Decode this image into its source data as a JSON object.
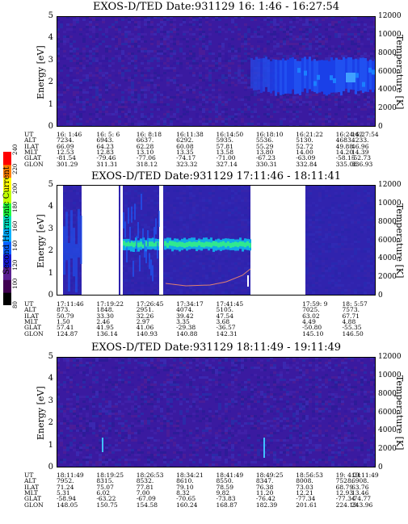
{
  "colorbar": {
    "label": "Second Harmonic Current",
    "ticks": [
      "80",
      "100",
      "120",
      "140",
      "160",
      "180",
      "200",
      "220",
      "240"
    ],
    "colors": [
      "#000000",
      "#400050",
      "#5a2090",
      "#1818d0",
      "#0a60ff",
      "#00b0ff",
      "#00e0c0",
      "#20ff40",
      "#c0ff00",
      "#ffff00",
      "#ff8000",
      "#ff0000"
    ]
  },
  "panels": [
    {
      "title": "EXOS-D/TED  Date:931129  16: 1:46 - 16:27:54",
      "ylabel": "Energy [eV]",
      "rlabel": "Temperature [K]",
      "yticks": [
        "0",
        "1",
        "2",
        "3",
        "4",
        "5"
      ],
      "rticks": [
        "0",
        "2000",
        "4000",
        "6000",
        "8000",
        "10000",
        "12000"
      ],
      "rows": [
        {
          "name": "UT",
          "values": [
            "16: 1:46",
            "16: 5: 6",
            "16: 8:18",
            "16:11:38",
            "16:14:50",
            "16:18:10",
            "16:21:22",
            "16:24:42",
            "16:27:54"
          ]
        },
        {
          "name": "ALT",
          "values": [
            "7234.",
            "6943.",
            "6637.",
            "6292.",
            "5935.",
            "5536.",
            "5130.",
            "4683.",
            "4233."
          ]
        },
        {
          "name": "ILAT",
          "values": [
            "66.09",
            "64.23",
            "62.28",
            "60.08",
            "57.81",
            "55.29",
            "52.72",
            "49.88",
            "46.96"
          ]
        },
        {
          "name": "MLT",
          "values": [
            "12.53",
            "12.83",
            "13.10",
            "13.35",
            "13.58",
            "13.80",
            "14.00",
            "14.20",
            "14.39"
          ]
        },
        {
          "name": "GLAT",
          "values": [
            "-81.54",
            "-79.46",
            "-77.06",
            "-74.17",
            "-71.00",
            "-67.23",
            "-63.09",
            "-58.15",
            "-52.73"
          ]
        },
        {
          "name": "GLON",
          "values": [
            "301.29",
            "311.31",
            "318.12",
            "323.32",
            "327.14",
            "330.31",
            "332.84",
            "335.08",
            "336.93"
          ]
        }
      ]
    },
    {
      "title": "EXOS-D/TED  Date:931129  17:11:46 - 18:11:41",
      "ylabel": "Energy [eV]",
      "rlabel": "Temperature [K]",
      "yticks": [
        "0",
        "1",
        "2",
        "3",
        "4",
        "5"
      ],
      "rticks": [
        "0",
        "2000",
        "4000",
        "6000",
        "8000",
        "10000",
        "12000"
      ],
      "rows": [
        {
          "name": "UT",
          "values": [
            "17:11:46",
            "17:19:22",
            "17:26:45",
            "17:34:17",
            "17:41:45",
            "",
            "17:59: 9",
            "18: 5:57"
          ]
        },
        {
          "name": "ALT",
          "values": [
            "873.",
            "1848.",
            "2951.",
            "4074.",
            "5105.",
            "",
            "7025.",
            "7573."
          ]
        },
        {
          "name": "ILAT",
          "values": [
            "50.79",
            "33.30",
            "32.26",
            "39.42",
            "47.54",
            "",
            "63.02",
            "67.71"
          ]
        },
        {
          "name": "MLT",
          "values": [
            "1.50",
            "2.46",
            "2.97",
            "3.35",
            "3.68",
            "",
            "4.49",
            "4.88"
          ]
        },
        {
          "name": "GLAT",
          "values": [
            "57.41",
            "41.95",
            "41.06",
            "-29.38",
            "-36.57",
            "",
            "-50.80",
            "-55.35"
          ]
        },
        {
          "name": "GLON",
          "values": [
            "124.87",
            "136.14",
            "140.93",
            "140.88",
            "142.31",
            "",
            "145.10",
            "146.50"
          ]
        }
      ]
    },
    {
      "title": "EXOS-D/TED  Date:931129  18:11:49 - 19:11:49",
      "ylabel": "Energy [eV]",
      "rlabel": "Temperature [K]",
      "yticks": [
        "0",
        "1",
        "2",
        "3",
        "4",
        "5"
      ],
      "rticks": [
        "0",
        "2000",
        "4000",
        "6000",
        "8000",
        "10000",
        "12000"
      ],
      "rows": [
        {
          "name": "UT",
          "values": [
            "18:11:49",
            "18:19:25",
            "18:26:53",
            "18:34:21",
            "18:41:49",
            "18:49:25",
            "18:56:53",
            "19: 4:21",
            "19:11:49"
          ]
        },
        {
          "name": "ALT",
          "values": [
            "7952.",
            "8315.",
            "8532.",
            "8610.",
            "8550.",
            "8347.",
            "8008.",
            "7528.",
            "6908."
          ]
        },
        {
          "name": "ILAT",
          "values": [
            "71.24",
            "75.07",
            "77.81",
            "79.10",
            "78.59",
            "76.38",
            "73.03",
            "68.79",
            "63.76"
          ]
        },
        {
          "name": "MLT",
          "values": [
            "5.31",
            "6.02",
            "7.00",
            "8.32",
            "9.82",
            "11.20",
            "12.21",
            "12.93",
            "13.46"
          ]
        },
        {
          "name": "GLAT",
          "values": [
            "-58.94",
            "-63.22",
            "-67.09",
            "-70.65",
            "-73.83",
            "-76.42",
            "-77.34",
            "-77.34",
            "-74.77"
          ]
        },
        {
          "name": "GLON",
          "values": [
            "148.05",
            "150.75",
            "154.58",
            "160.24",
            "168.87",
            "182.39",
            "201.61",
            "224.19",
            "243.96"
          ]
        }
      ]
    }
  ],
  "chart_data": [
    {
      "type": "heatmap",
      "title": "EXOS-D/TED  Date:931129  16: 1:46 - 16:27:54",
      "xlabel": "",
      "ylabel": "Energy [eV]",
      "y2label": "Temperature [K]",
      "ylim": [
        0,
        5
      ],
      "y2lim": [
        0,
        12000
      ],
      "x_ticks": [
        "16: 1:46",
        "16: 5: 6",
        "16: 8:18",
        "16:11:38",
        "16:14:50",
        "16:18:10",
        "16:21:22",
        "16:24:42",
        "16:27:54"
      ],
      "colorbar_ticks": [
        80,
        100,
        120,
        140,
        160,
        180,
        200,
        220,
        240
      ],
      "features": [
        {
          "x_range": [
            "16: 1:46",
            "16:18:10"
          ],
          "energy_range": [
            0,
            5
          ],
          "intensity": 100
        },
        {
          "x_range": [
            "16:18:10",
            "16:27:54"
          ],
          "energy_range": [
            1.5,
            3.2
          ],
          "intensity": 140
        }
      ]
    },
    {
      "type": "heatmap",
      "title": "EXOS-D/TED  Date:931129  17:11:46 - 18:11:41",
      "xlabel": "",
      "ylabel": "Energy [eV]",
      "y2label": "Temperature [K]",
      "ylim": [
        0,
        5
      ],
      "y2lim": [
        0,
        12000
      ],
      "x_ticks": [
        "17:11:46",
        "17:19:22",
        "17:26:45",
        "17:34:17",
        "17:41:45",
        "17:59: 9",
        "18: 5:57"
      ],
      "colorbar_ticks": [
        80,
        100,
        120,
        140,
        160,
        180,
        200,
        220,
        240
      ],
      "data_gaps": [
        [
          "17:15:40",
          "17:22:20"
        ],
        [
          "17:23:10",
          "17:24:00"
        ],
        [
          "17:30:00",
          "17:30:40"
        ],
        [
          "17:46:00",
          "17:57:00"
        ]
      ],
      "features": [
        {
          "x_range": [
            "17:24:00",
            "17:46:00"
          ],
          "energy_range": [
            1.9,
            2.5
          ],
          "intensity": 190
        },
        {
          "x_range": [
            "17:11:46",
            "17:46:00"
          ],
          "energy_range": [
            0,
            4
          ],
          "intensity": 140
        }
      ],
      "temperature_trace": {
        "x": [
          "17:24:00",
          "17:30:00",
          "17:36:00",
          "17:40:00",
          "17:44:00",
          "17:46:00"
        ],
        "y": [
          1400,
          1200,
          1300,
          1600,
          2400,
          3200
        ]
      }
    },
    {
      "type": "heatmap",
      "title": "EXOS-D/TED  Date:931129  18:11:49 - 19:11:49",
      "xlabel": "",
      "ylabel": "Energy [eV]",
      "y2label": "Temperature [K]",
      "ylim": [
        0,
        5
      ],
      "y2lim": [
        0,
        12000
      ],
      "x_ticks": [
        "18:11:49",
        "18:19:25",
        "18:26:53",
        "18:34:21",
        "18:41:49",
        "18:49:25",
        "18:56:53",
        "19: 4:21",
        "19:11:49"
      ],
      "colorbar_ticks": [
        80,
        100,
        120,
        140,
        160,
        180,
        200,
        220,
        240
      ],
      "features": [
        {
          "x_range": [
            "18:11:49",
            "19:11:49"
          ],
          "energy_range": [
            0,
            5
          ],
          "intensity": 100
        }
      ]
    }
  ]
}
